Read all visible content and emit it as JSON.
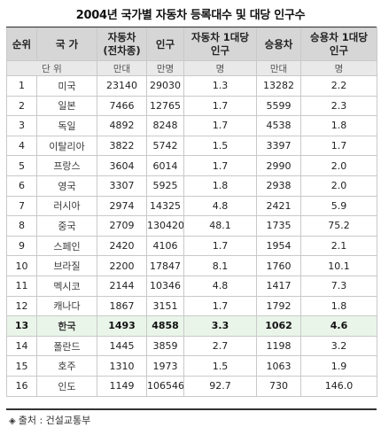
{
  "title": "2004년 국가별 자동차 등록대수 및 대당 인구수",
  "headers": {
    "rank": "순위",
    "country": "국 가",
    "cars": "자동차\n(전차종)",
    "population": "인구",
    "people_per_car": "자동차 1대당\n인구",
    "passenger": "승용차",
    "people_per_passenger": "승용차 1대당\n인구"
  },
  "units": {
    "label": "단 위",
    "cars": "만대",
    "population": "만명",
    "people_per_car": "명",
    "passenger": "만대",
    "people_per_passenger": "명"
  },
  "rows": [
    {
      "rank": "1",
      "country": "미국",
      "cars": "23140",
      "population": "29030",
      "ppc": "1.3",
      "passenger": "13282",
      "ppp": "2.2"
    },
    {
      "rank": "2",
      "country": "일본",
      "cars": "7466",
      "population": "12765",
      "ppc": "1.7",
      "passenger": "5599",
      "ppp": "2.3"
    },
    {
      "rank": "3",
      "country": "독일",
      "cars": "4892",
      "population": "8248",
      "ppc": "1.7",
      "passenger": "4538",
      "ppp": "1.8"
    },
    {
      "rank": "4",
      "country": "이탈리아",
      "cars": "3822",
      "population": "5742",
      "ppc": "1.5",
      "passenger": "3397",
      "ppp": "1.7"
    },
    {
      "rank": "5",
      "country": "프랑스",
      "cars": "3604",
      "population": "6014",
      "ppc": "1.7",
      "passenger": "2990",
      "ppp": "2.0"
    },
    {
      "rank": "6",
      "country": "영국",
      "cars": "3307",
      "population": "5925",
      "ppc": "1.8",
      "passenger": "2938",
      "ppp": "2.0"
    },
    {
      "rank": "7",
      "country": "러시아",
      "cars": "2974",
      "population": "14325",
      "ppc": "4.8",
      "passenger": "2421",
      "ppp": "5.9"
    },
    {
      "rank": "8",
      "country": "중국",
      "cars": "2709",
      "population": "130420",
      "ppc": "48.1",
      "passenger": "1735",
      "ppp": "75.2"
    },
    {
      "rank": "9",
      "country": "스페인",
      "cars": "2420",
      "population": "4106",
      "ppc": "1.7",
      "passenger": "1954",
      "ppp": "2.1"
    },
    {
      "rank": "10",
      "country": "브라질",
      "cars": "2200",
      "population": "17847",
      "ppc": "8.1",
      "passenger": "1760",
      "ppp": "10.1"
    },
    {
      "rank": "11",
      "country": "멕시코",
      "cars": "2144",
      "population": "10346",
      "ppc": "4.8",
      "passenger": "1417",
      "ppp": "7.3"
    },
    {
      "rank": "12",
      "country": "캐나다",
      "cars": "1867",
      "population": "3151",
      "ppc": "1.7",
      "passenger": "1792",
      "ppp": "1.8"
    },
    {
      "rank": "13",
      "country": "한국",
      "cars": "1493",
      "population": "4858",
      "ppc": "3.3",
      "passenger": "1062",
      "ppp": "4.6",
      "highlight": true
    },
    {
      "rank": "14",
      "country": "폴란드",
      "cars": "1445",
      "population": "3859",
      "ppc": "2.7",
      "passenger": "1198",
      "ppp": "3.2"
    },
    {
      "rank": "15",
      "country": "호주",
      "cars": "1310",
      "population": "1973",
      "ppc": "1.5",
      "passenger": "1063",
      "ppp": "1.9"
    },
    {
      "rank": "16",
      "country": "인도",
      "cars": "1149",
      "population": "106546",
      "ppc": "92.7",
      "passenger": "730",
      "ppp": "146.0"
    }
  ],
  "source": "출처 : 건설교통부"
}
